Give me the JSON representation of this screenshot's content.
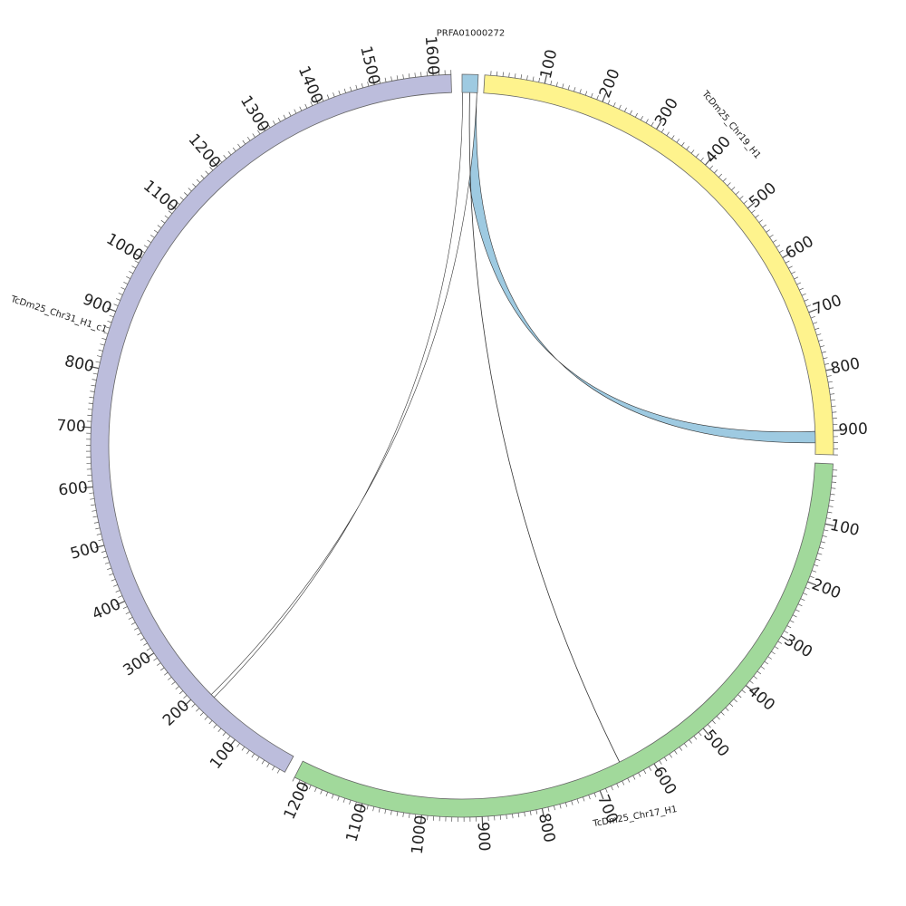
{
  "diagram": {
    "type": "circos",
    "sequences": [
      {
        "id": "PRFA01000272",
        "label": "PRFA01000272",
        "color": "#9ecae1",
        "start_angle_deg": 0.0,
        "end_angle_deg": 2.5,
        "start": 0,
        "end": 0,
        "tick_labels": []
      },
      {
        "id": "TcDm25_Chr19_H1",
        "label": "TcDm25_Chr19_H1",
        "color": "#fef38d",
        "start_angle_deg": 3.5,
        "end_angle_deg": 91.4,
        "start": 0,
        "end": 940,
        "tick_labels": [
          [
            "100",
            "100"
          ],
          [
            "200",
            "200"
          ],
          [
            "300",
            "300"
          ],
          [
            "400",
            "400"
          ],
          [
            "500",
            "500"
          ],
          [
            "600",
            "600"
          ],
          [
            "700",
            "700"
          ],
          [
            "800",
            "800"
          ],
          [
            "900",
            "900"
          ]
        ]
      },
      {
        "id": "TcDm25_Chr17_H1",
        "label": "TcDm25_Chr17_H1",
        "color": "#a1d99b",
        "start_angle_deg": 92.8,
        "end_angle_deg": 206.8,
        "start": 0,
        "end": 1220,
        "tick_labels": [
          [
            "100",
            "100"
          ],
          [
            "200",
            "200"
          ],
          [
            "300",
            "300"
          ],
          [
            "400",
            "400"
          ],
          [
            "500",
            "500"
          ],
          [
            "600",
            "600"
          ],
          [
            "700",
            "700"
          ],
          [
            "800",
            "800"
          ],
          [
            "900",
            "900"
          ],
          [
            "1000",
            "1000"
          ],
          [
            "1100",
            "1100"
          ],
          [
            "1200",
            "1200"
          ]
        ]
      },
      {
        "id": "TcDm25_Chr31_H1_c1",
        "label": "TcDm25_Chr31_H1_c1",
        "color": "#bcbddc",
        "start_angle_deg": 208.5,
        "end_angle_deg": 358.3,
        "start": 0,
        "end": 1630,
        "tick_labels": [
          [
            "100",
            "100"
          ],
          [
            "200",
            "200"
          ],
          [
            "300",
            "300"
          ],
          [
            "400",
            "400"
          ],
          [
            "500",
            "500"
          ],
          [
            "600",
            "600"
          ],
          [
            "700",
            "700"
          ],
          [
            "800",
            "800"
          ],
          [
            "900",
            "900"
          ],
          [
            "1000",
            "1000"
          ],
          [
            "1100",
            "1100"
          ],
          [
            "1200",
            "1200"
          ],
          [
            "1300",
            "1300"
          ],
          [
            "1400",
            "1400"
          ],
          [
            "1500",
            "1500"
          ],
          [
            "1600",
            "1600"
          ]
        ]
      }
    ],
    "links": [
      {
        "from": "PRFA01000272",
        "to": "TcDm25_Chr19_H1",
        "to_start": 900,
        "to_end": 920,
        "color": "#9ecae1",
        "ribbon": true
      },
      {
        "from": "PRFA01000272",
        "to": "TcDm25_Chr31_H1_c1",
        "to_start": 175,
        "to_end": 182,
        "color": "#ffffff",
        "ribbon": false
      },
      {
        "from": "PRFA01000272",
        "to": "TcDm25_Chr17_H1",
        "to_start": 650,
        "to_end": 650,
        "color": "#000000",
        "ribbon": false
      }
    ]
  }
}
